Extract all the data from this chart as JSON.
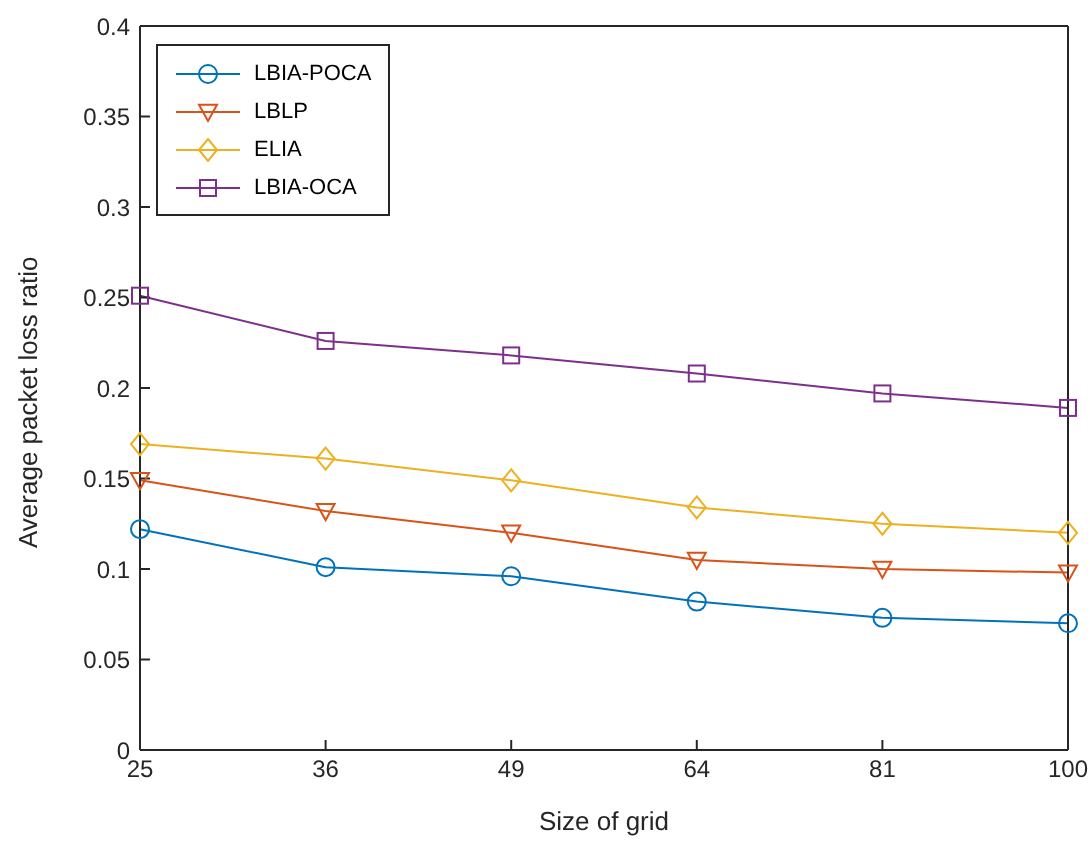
{
  "chart_data": {
    "type": "line",
    "xlabel": "Size of grid",
    "ylabel": "Average packet loss ratio",
    "categories": [
      "25",
      "36",
      "49",
      "64",
      "81",
      "100"
    ],
    "series": [
      {
        "name": "LBIA-POCA",
        "color": "#0072bd",
        "marker": "circle",
        "values": [
          0.122,
          0.101,
          0.096,
          0.082,
          0.073,
          0.07
        ]
      },
      {
        "name": "LBLP",
        "color": "#d95319",
        "marker": "triangle",
        "values": [
          0.149,
          0.132,
          0.12,
          0.105,
          0.1,
          0.098
        ]
      },
      {
        "name": "ELIA",
        "color": "#edb120",
        "marker": "diamond",
        "values": [
          0.169,
          0.161,
          0.149,
          0.134,
          0.125,
          0.12
        ]
      },
      {
        "name": "LBIA-OCA",
        "color": "#7e2f8e",
        "marker": "square",
        "values": [
          0.251,
          0.226,
          0.218,
          0.208,
          0.197,
          0.189
        ]
      }
    ],
    "ylim": [
      0,
      0.4
    ],
    "yticks": [
      0,
      0.05,
      0.1,
      0.15,
      0.2,
      0.25,
      0.3,
      0.35,
      0.4
    ],
    "grid": false,
    "legend": "top left",
    "line_style": "solid"
  }
}
